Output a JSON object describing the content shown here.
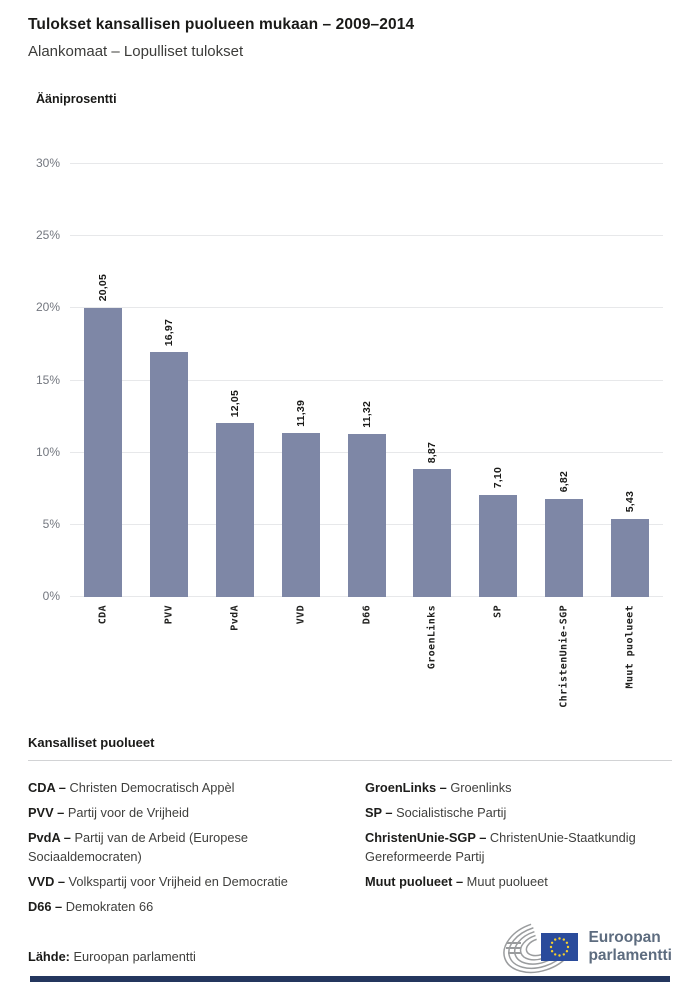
{
  "header": {
    "title": "Tulokset kansallisen puolueen mukaan – 2009–2014",
    "subtitle": "Alankomaat – Lopulliset tulokset"
  },
  "chart_data": {
    "type": "bar",
    "axis_title": "Ääniprosentti",
    "categories": [
      "CDA",
      "PVV",
      "PvdA",
      "VVD",
      "D66",
      "GroenLinks",
      "SP",
      "ChristenUnie-SGP",
      "Muut puolueet"
    ],
    "values": [
      20.05,
      16.97,
      12.05,
      11.39,
      11.32,
      8.87,
      7.1,
      6.82,
      5.43
    ],
    "value_labels": [
      "20,05",
      "16,97",
      "12,05",
      "11,39",
      "11,32",
      "8,87",
      "7,10",
      "6,82",
      "5,43"
    ],
    "yticks": [
      "0%",
      "5%",
      "10%",
      "15%",
      "20%",
      "25%",
      "30%"
    ],
    "ylim": [
      0,
      30
    ],
    "xlabel": "",
    "ylabel": "Ääniprosentti",
    "grid": true,
    "legend_position": "none",
    "bar_color": "#7e87a6"
  },
  "legend": {
    "title": "Kansalliset puolueet",
    "columns": [
      [
        {
          "term": "CDA –",
          "desc": "Christen Democratisch Appèl"
        },
        {
          "term": "PVV –",
          "desc": "Partij voor de Vrijheid"
        },
        {
          "term": "PvdA –",
          "desc": "Partij van de Arbeid (Europese Sociaaldemocraten)"
        },
        {
          "term": "VVD –",
          "desc": "Volkspartij voor Vrijheid en Democratie"
        },
        {
          "term": "D66 –",
          "desc": "Demokraten 66"
        }
      ],
      [
        {
          "term": "GroenLinks –",
          "desc": "Groenlinks"
        },
        {
          "term": "SP –",
          "desc": "Socialistische Partij"
        },
        {
          "term": "ChristenUnie-SGP –",
          "desc": "ChristenUnie-Staatkundig Gereformeerde Partij"
        },
        {
          "term": "Muut puolueet –",
          "desc": "Muut puolueet"
        }
      ]
    ]
  },
  "footer": {
    "source_label": "Lähde:",
    "source_value": "Euroopan parlamentti",
    "logo_line1": "Euroopan",
    "logo_line2": "parlamentti"
  },
  "colors": {
    "bar": "#7e87a6",
    "gridline": "#e7e8ea",
    "tick_text": "#73777f",
    "flag_blue": "#2a4b9b",
    "star_yellow": "#f8d12e",
    "logo_gray": "#9a9c9e",
    "bottom_bar": "#24365e"
  }
}
